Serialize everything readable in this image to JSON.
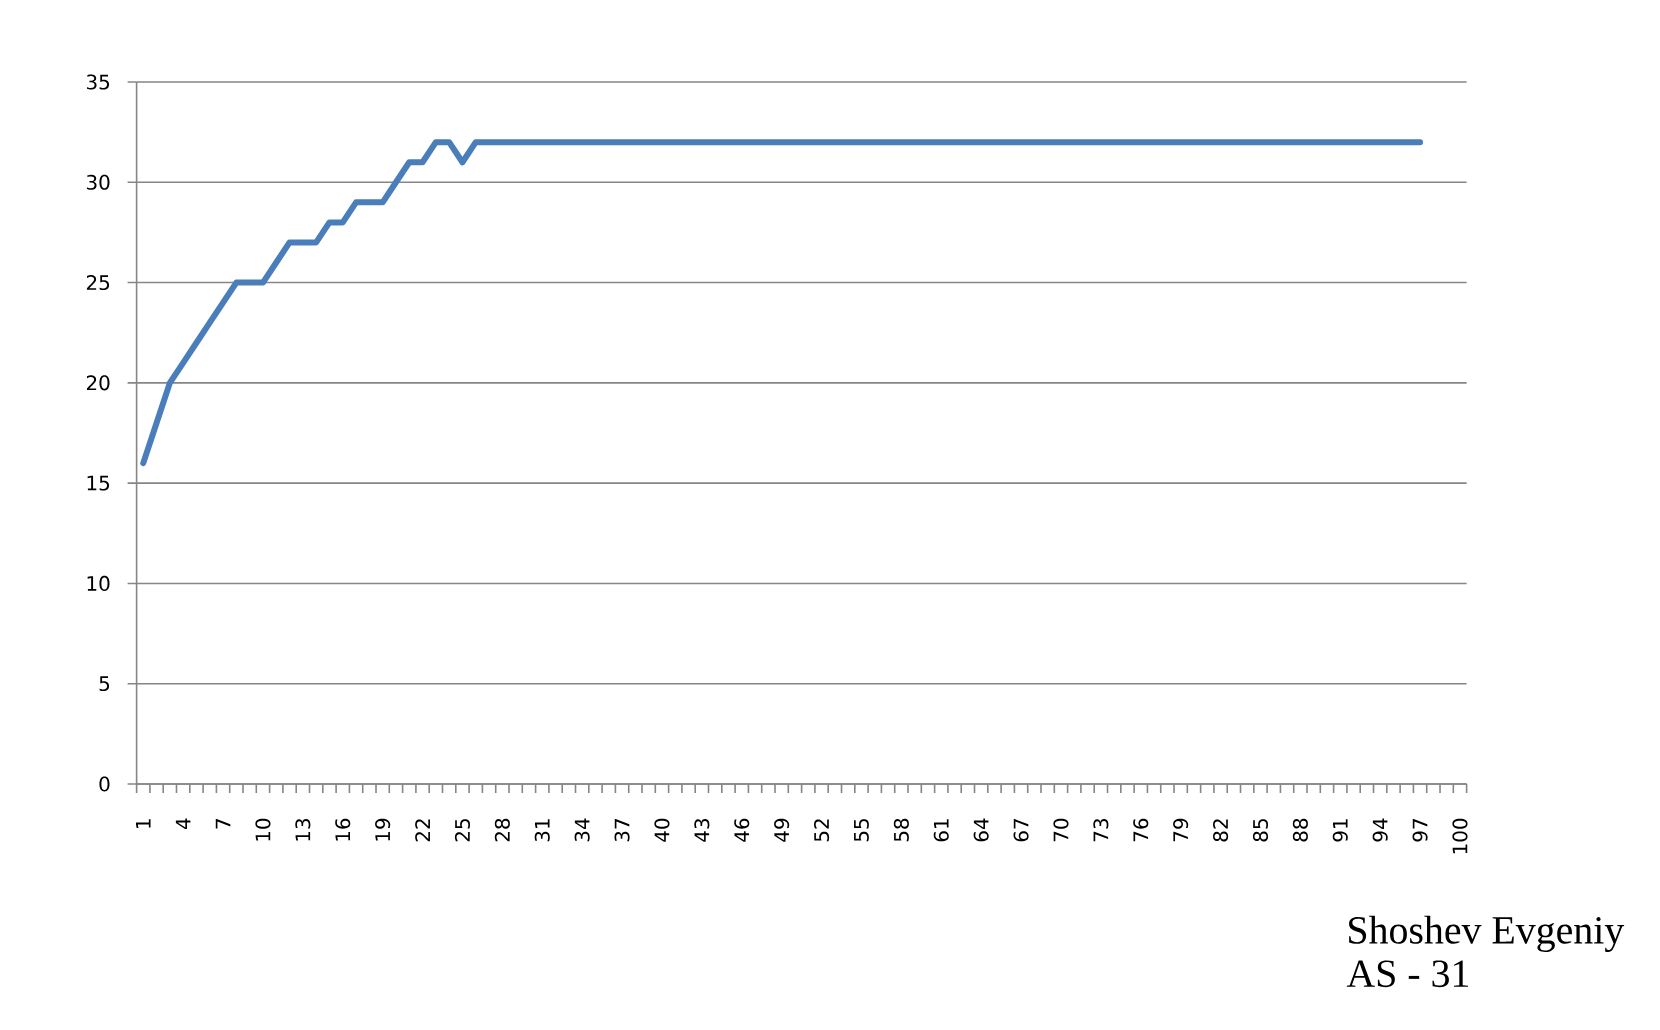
{
  "chart_data": {
    "type": "line",
    "categories": [
      "1",
      null,
      null,
      "4",
      null,
      null,
      "7",
      null,
      null,
      "10",
      null,
      null,
      "13",
      null,
      null,
      "16",
      null,
      null,
      "19",
      null,
      null,
      "22",
      null,
      null,
      "25",
      null,
      null,
      "28",
      null,
      null,
      "31",
      null,
      null,
      "34",
      null,
      null,
      "37",
      null,
      null,
      "40",
      null,
      null,
      "43",
      null,
      null,
      "46",
      null,
      null,
      "49",
      null,
      null,
      "52",
      null,
      null,
      "55",
      null,
      null,
      "58",
      null,
      null,
      "61",
      null,
      null,
      "64",
      null,
      null,
      "67",
      null,
      null,
      "70",
      null,
      null,
      "73",
      null,
      null,
      "76",
      null,
      null,
      "79",
      null,
      null,
      "82",
      null,
      null,
      "85",
      null,
      null,
      "88",
      null,
      null,
      "91",
      null,
      null,
      "94",
      null,
      null,
      "97",
      null,
      null,
      "100"
    ],
    "values": [
      16,
      18,
      20,
      21,
      22,
      23,
      24,
      25,
      25,
      25,
      26,
      27,
      27,
      27,
      28,
      28,
      29,
      29,
      29,
      30,
      31,
      31,
      32,
      32,
      31,
      32,
      32,
      32,
      32,
      32,
      32,
      32,
      32,
      32,
      32,
      32,
      32,
      32,
      32,
      32,
      32,
      32,
      32,
      32,
      32,
      32,
      32,
      32,
      32,
      32,
      32,
      32,
      32,
      32,
      32,
      32,
      32,
      32,
      32,
      32,
      32,
      32,
      32,
      32,
      32,
      32,
      32,
      32,
      32,
      32,
      32,
      32,
      32,
      32,
      32,
      32,
      32,
      32,
      32,
      32,
      32,
      32,
      32,
      32,
      32,
      32,
      32,
      32,
      32,
      32,
      32,
      32,
      32,
      32,
      32,
      32,
      32,
      null,
      null,
      null
    ],
    "color": "#4a7ebb",
    "line_style": "solid",
    "ylim": [
      0,
      35
    ],
    "yticks": [
      0,
      5,
      10,
      15,
      20,
      25,
      30,
      35
    ],
    "grid": "y",
    "annotations": [
      "Shoshev Evgeniy",
      "AS - 31"
    ]
  }
}
